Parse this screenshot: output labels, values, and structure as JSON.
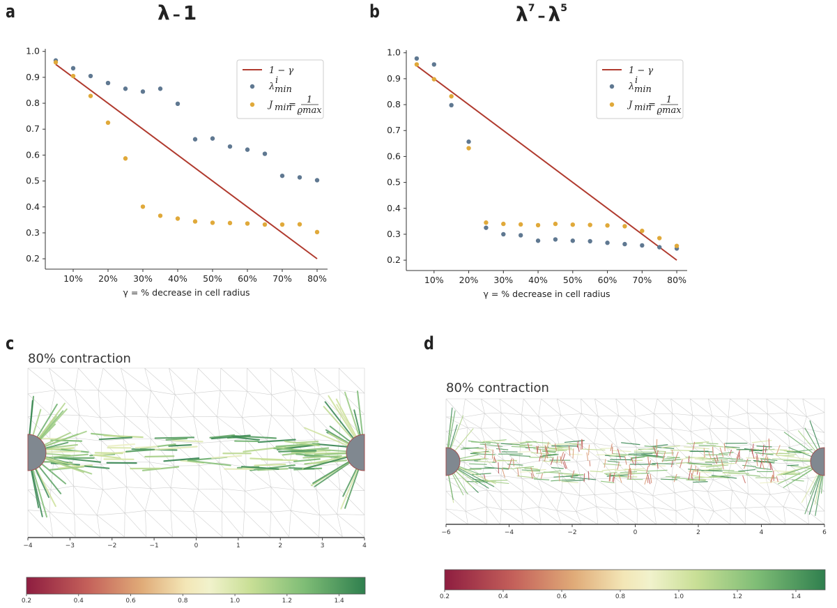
{
  "panels": {
    "a": {
      "letter": "a",
      "title_main": "λ",
      "title_op": "–",
      "title_rest": "1"
    },
    "b": {
      "letter": "b",
      "title_a": "λ",
      "title_a_sup": "7",
      "title_op": "–",
      "title_b": "λ",
      "title_b_sup": "5"
    },
    "c": {
      "letter": "c",
      "subtitle": "80% contraction"
    },
    "d": {
      "letter": "d",
      "subtitle": "80% contraction"
    }
  },
  "colors": {
    "line": "#b03a2e",
    "lambda": "#5f7891",
    "jmin": "#e0a93a",
    "axis": "#333333",
    "mesh": "#cfcfcf",
    "cell": "#808890"
  },
  "chart_data": [
    {
      "id": "a",
      "type": "scatter",
      "title": "λ – 1",
      "xlabel": "γ = % decrease in cell radius",
      "ylabel": "",
      "xlim": [
        0.02,
        0.83
      ],
      "ylim": [
        0.16,
        1.01
      ],
      "xticks": [
        0.1,
        0.2,
        0.3,
        0.4,
        0.5,
        0.6,
        0.7,
        0.8
      ],
      "xtick_labels": [
        "10%",
        "20%",
        "30%",
        "40%",
        "50%",
        "60%",
        "70%",
        "80%"
      ],
      "yticks": [
        0.2,
        0.3,
        0.4,
        0.5,
        0.6,
        0.7,
        0.8,
        0.9,
        1.0
      ],
      "ytick_labels": [
        "0.2",
        "0.3",
        "0.4",
        "0.5",
        "0.6",
        "0.7",
        "0.8",
        "0.9",
        "1.0"
      ],
      "legend_position": "top-right",
      "line": {
        "name": "1 − γ",
        "x": [
          0.05,
          0.8
        ],
        "y": [
          0.95,
          0.2
        ]
      },
      "series": [
        {
          "name": "λ^i_min",
          "x": [
            0.05,
            0.1,
            0.15,
            0.2,
            0.25,
            0.3,
            0.35,
            0.4,
            0.45,
            0.5,
            0.55,
            0.6,
            0.65,
            0.7,
            0.75,
            0.8
          ],
          "values": [
            0.965,
            0.935,
            0.905,
            0.878,
            0.856,
            0.845,
            0.856,
            0.798,
            0.661,
            0.664,
            0.633,
            0.621,
            0.605,
            0.52,
            0.514,
            0.503
          ]
        },
        {
          "name": "J_min = 1/ϱ_max",
          "x": [
            0.05,
            0.1,
            0.15,
            0.2,
            0.25,
            0.3,
            0.35,
            0.4,
            0.45,
            0.5,
            0.55,
            0.6,
            0.65,
            0.7,
            0.75,
            0.8
          ],
          "values": [
            0.958,
            0.905,
            0.828,
            0.725,
            0.587,
            0.401,
            0.366,
            0.355,
            0.344,
            0.339,
            0.338,
            0.336,
            0.332,
            0.332,
            0.333,
            0.303
          ]
        }
      ]
    },
    {
      "id": "b",
      "type": "scatter",
      "title": "λ7 – λ5",
      "xlabel": "γ = % decrease in cell radius",
      "ylabel": "",
      "xlim": [
        0.02,
        0.83
      ],
      "ylim": [
        0.16,
        1.01
      ],
      "xticks": [
        0.1,
        0.2,
        0.3,
        0.4,
        0.5,
        0.6,
        0.7,
        0.8
      ],
      "xtick_labels": [
        "10%",
        "20%",
        "30%",
        "40%",
        "50%",
        "60%",
        "70%",
        "80%"
      ],
      "yticks": [
        0.2,
        0.3,
        0.4,
        0.5,
        0.6,
        0.7,
        0.8,
        0.9,
        1.0
      ],
      "ytick_labels": [
        "0.2",
        "0.3",
        "0.4",
        "0.5",
        "0.6",
        "0.7",
        "0.8",
        "0.9",
        "1.0"
      ],
      "legend_position": "top-right",
      "line": {
        "name": "1 − γ",
        "x": [
          0.05,
          0.8
        ],
        "y": [
          0.95,
          0.2
        ]
      },
      "series": [
        {
          "name": "λ^i_min",
          "x": [
            0.05,
            0.1,
            0.15,
            0.2,
            0.25,
            0.3,
            0.35,
            0.4,
            0.45,
            0.5,
            0.55,
            0.6,
            0.65,
            0.7,
            0.75,
            0.8
          ],
          "values": [
            0.978,
            0.955,
            0.798,
            0.657,
            0.325,
            0.3,
            0.296,
            0.275,
            0.28,
            0.275,
            0.273,
            0.267,
            0.262,
            0.257,
            0.25,
            0.245
          ]
        },
        {
          "name": "J_min = 1/ϱ_max",
          "x": [
            0.05,
            0.1,
            0.15,
            0.2,
            0.25,
            0.3,
            0.35,
            0.4,
            0.45,
            0.5,
            0.55,
            0.6,
            0.65,
            0.7,
            0.75,
            0.8
          ],
          "values": [
            0.955,
            0.898,
            0.832,
            0.632,
            0.345,
            0.34,
            0.338,
            0.335,
            0.34,
            0.337,
            0.336,
            0.334,
            0.331,
            0.313,
            0.285,
            0.255
          ]
        }
      ]
    },
    {
      "id": "c",
      "type": "other",
      "title": "80% contraction",
      "xlim": [
        -4,
        4
      ],
      "xticks": [
        -4,
        -3,
        -2,
        -1,
        0,
        1,
        2,
        3,
        4
      ],
      "xtick_labels": [
        "−4",
        "−3",
        "−2",
        "−1",
        "0",
        "1",
        "2",
        "3",
        "4"
      ],
      "colorbar": {
        "min": 0.2,
        "max": 1.5,
        "ticks": [
          0.2,
          0.4,
          0.6,
          0.8,
          1.0,
          1.2,
          1.4
        ],
        "tick_labels": [
          "0.2",
          "0.4",
          "0.6",
          "0.8",
          "1.0",
          "1.2",
          "1.4"
        ]
      }
    },
    {
      "id": "d",
      "type": "other",
      "title": "80% contraction",
      "xlim": [
        -6,
        6
      ],
      "xticks": [
        -6,
        -4,
        -2,
        0,
        2,
        4,
        6
      ],
      "xtick_labels": [
        "−6",
        "−4",
        "−2",
        "0",
        "2",
        "4",
        "6"
      ],
      "colorbar": {
        "min": 0.2,
        "max": 1.5,
        "ticks": [
          0.2,
          0.4,
          0.6,
          0.8,
          1.0,
          1.2,
          1.4
        ],
        "tick_labels": [
          "0.2",
          "0.4",
          "0.6",
          "0.8",
          "1.0",
          "1.2",
          "1.4"
        ]
      }
    }
  ],
  "legend": {
    "line_label": "1 − γ",
    "lambda_base": "λ",
    "lambda_sup": "i",
    "lambda_sub": "min",
    "j_base": "J",
    "j_sub": "min",
    "j_eq": " = ",
    "j_num": "1",
    "j_den": "ϱmax"
  }
}
